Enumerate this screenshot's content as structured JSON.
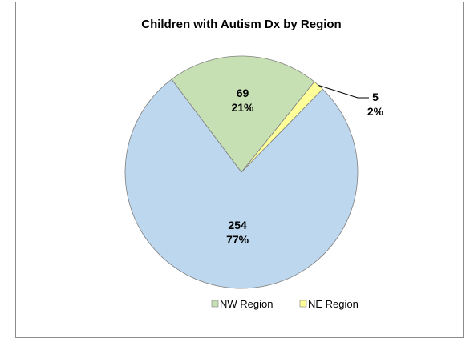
{
  "chart_data": {
    "type": "pie",
    "title": "Children with Autism Dx by Region",
    "slices": [
      {
        "name": "",
        "value": 254,
        "percent_label": "77%",
        "value_label": "254",
        "color": "#bdd7ee"
      },
      {
        "name": "NW Region",
        "value": 69,
        "percent_label": "21%",
        "value_label": "69",
        "color": "#c6e0b4"
      },
      {
        "name": "NE Region",
        "value": 5,
        "percent_label": "2%",
        "value_label": "5",
        "color": "#ffff99"
      }
    ],
    "legend": {
      "placement": "bottom",
      "items": [
        {
          "label": "NW Region",
          "color": "#c6e0b4"
        },
        {
          "label": "NE Region",
          "color": "#ffff99"
        }
      ]
    }
  }
}
